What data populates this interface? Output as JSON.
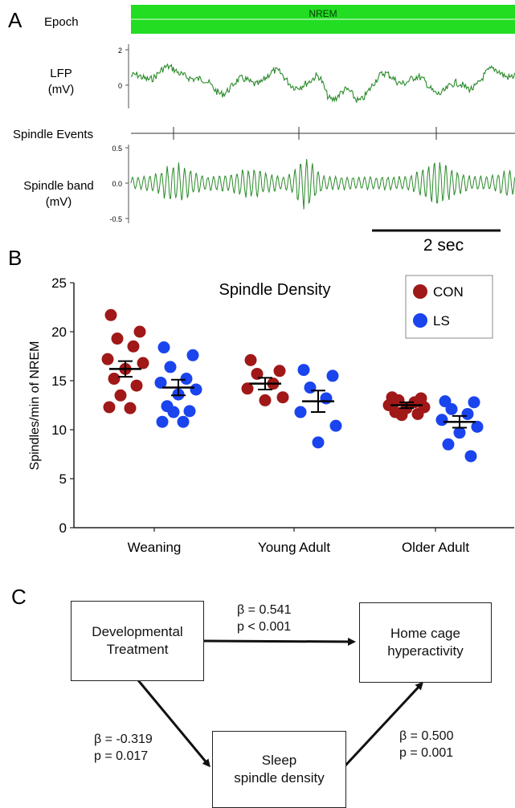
{
  "panel_a": {
    "letter": "A",
    "epoch_label": "Epoch",
    "epoch_state": "NREM",
    "lfp_label": [
      "LFP",
      "(mV)"
    ],
    "lfp_ticks": [
      "2",
      "0"
    ],
    "spindle_events_label": "Spindle Events",
    "spindle_band_label": [
      "Spindle band",
      "(mV)"
    ],
    "spindle_ticks": [
      "0.5",
      "0.0",
      "-0.5"
    ],
    "scale_bar_label": "2 sec",
    "colors": {
      "epoch": "#22dd22",
      "trace": "#2a8a2a"
    }
  },
  "panel_c": {
    "letter": "C",
    "box_treatment": [
      "Developmental",
      "Treatment"
    ],
    "box_hyperactivity": [
      "Home cage",
      "hyperactivity"
    ],
    "box_spindle": [
      "Sleep",
      "spindle density"
    ],
    "path_direct": {
      "beta": "β  = 0.541",
      "p": "p < 0.001"
    },
    "path_a": {
      "beta": "β = -0.319",
      "p": "p = 0.017"
    },
    "path_b": {
      "beta": "β  = 0.500",
      "p": "p = 0.001"
    }
  },
  "chart_data": {
    "type": "scatter",
    "panel_letter": "B",
    "title": "Spindle Density",
    "ylabel": "Spindles/min of NREM",
    "ylim": [
      0,
      25
    ],
    "yticks": [
      0,
      5,
      10,
      15,
      20,
      25
    ],
    "categories": [
      "Weaning",
      "Young Adult",
      "Older Adult"
    ],
    "legend": {
      "placement": "top-right"
    },
    "series": [
      {
        "name": "CON",
        "color": "#a01818",
        "groups": [
          {
            "values": [
              21.7,
              20.0,
              19.3,
              18.5,
              17.2,
              16.8,
              16.2,
              15.2,
              14.5,
              13.5,
              12.2,
              12.3
            ],
            "mean": 16.2,
            "sem": 0.8
          },
          {
            "values": [
              17.1,
              16.0,
              15.7,
              14.7,
              14.2,
              13.3,
              13.0
            ],
            "mean": 14.7,
            "sem": 0.6
          },
          {
            "values": [
              13.3,
              13.2,
              13.0,
              12.8,
              12.5,
              12.3,
              12.2,
              11.8,
              11.6,
              11.5
            ],
            "mean": 12.5,
            "sem": 0.3
          }
        ]
      },
      {
        "name": "LS",
        "color": "#1a44ee",
        "groups": [
          {
            "values": [
              18.4,
              17.6,
              16.4,
              15.2,
              14.8,
              14.1,
              13.6,
              12.4,
              11.9,
              11.8,
              10.8,
              10.8
            ],
            "mean": 14.3,
            "sem": 0.8
          },
          {
            "values": [
              16.1,
              15.5,
              14.3,
              13.2,
              11.8,
              10.4,
              8.7
            ],
            "mean": 12.9,
            "sem": 1.1
          },
          {
            "values": [
              12.9,
              12.8,
              12.1,
              11.6,
              11.0,
              10.3,
              9.7,
              8.5,
              7.3
            ],
            "mean": 10.8,
            "sem": 0.6
          }
        ]
      }
    ]
  }
}
